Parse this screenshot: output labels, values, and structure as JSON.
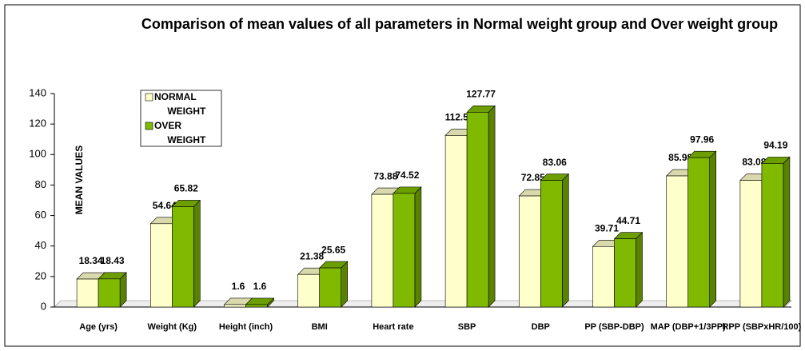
{
  "chart_data": {
    "type": "bar",
    "title": "Comparison of mean values of all parameters in Normal weight group and Over weight group",
    "y_label": "MEAN VALUES",
    "categories": [
      "Age (yrs)",
      "Weight (Kg)",
      "Height (inch)",
      "BMI",
      "Heart rate",
      "SBP",
      "DBP",
      "PP (SBP-DBP)",
      "MAP (DBP+1/3PP)",
      "RPP (SBPxHR/100)"
    ],
    "series": [
      {
        "name": "NORMAL WEIGHT",
        "color": "#ffffcc",
        "values": [
          18.34,
          54.64,
          1.6,
          21.38,
          73.88,
          112.53,
          72.85,
          39.71,
          85.98,
          83.08
        ]
      },
      {
        "name": "OVER WEIGHT",
        "color": "#7fba00",
        "values": [
          18.43,
          65.82,
          1.6,
          25.65,
          74.52,
          127.77,
          83.06,
          44.71,
          97.96,
          94.19
        ]
      }
    ],
    "ylim": [
      0,
      140
    ],
    "yticks": [
      0,
      20,
      40,
      60,
      80,
      100,
      120,
      140
    ],
    "grid": false
  }
}
